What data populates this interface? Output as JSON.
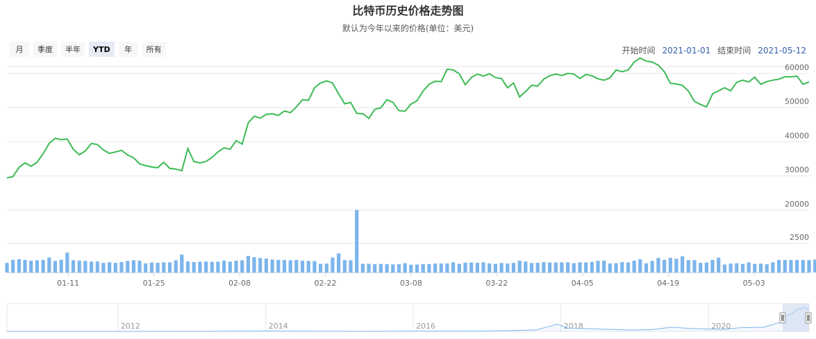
{
  "title": "比特币历史价格走势图",
  "subtitle": "默认为今年以来的价格(单位：美元)",
  "range_buttons": [
    "月",
    "季度",
    "半年",
    "YTD",
    "年",
    "所有"
  ],
  "active_range": "YTD",
  "date_range": {
    "start_label": "开始时间",
    "start_value": "2021-01-01",
    "end_label": "结束时间",
    "end_value": "2021-05-12"
  },
  "colors": {
    "price_line": "#3cba54",
    "volume_bar": "#7cb5ec",
    "navigator_line": "#7cb5ec",
    "navigator_mask": "#c8d7ec"
  },
  "chart_data": [
    {
      "type": "line",
      "name": "price",
      "x_range": [
        "2021-01-01",
        "2021-05-12"
      ],
      "x_tick_labels": [
        "01-11",
        "01-25",
        "02-08",
        "02-22",
        "03-08",
        "03-22",
        "04-05",
        "04-19",
        "05-03"
      ],
      "x_tick_dates": [
        "2021-01-11",
        "2021-01-25",
        "2021-02-08",
        "2021-02-22",
        "2021-03-08",
        "2021-03-22",
        "2021-04-05",
        "2021-04-19",
        "2021-05-03"
      ],
      "y_ticks": [
        20000,
        30000,
        40000,
        50000,
        60000
      ],
      "ylim": [
        20000,
        62000
      ],
      "values": [
        29400,
        29800,
        32500,
        33800,
        32800,
        34000,
        36500,
        39500,
        41000,
        40600,
        40800,
        37800,
        36200,
        37300,
        39500,
        39200,
        37600,
        36600,
        37000,
        37500,
        36100,
        35300,
        33500,
        33000,
        32600,
        32400,
        34000,
        32200,
        32000,
        31500,
        38000,
        34200,
        33800,
        34200,
        35400,
        37000,
        38200,
        37800,
        40300,
        39300,
        45500,
        47500,
        46900,
        48000,
        48200,
        47700,
        49000,
        48500,
        50200,
        52300,
        52100,
        55800,
        57200,
        57800,
        57200,
        54000,
        51100,
        51500,
        48300,
        48200,
        46800,
        49500,
        49900,
        52300,
        51500,
        49100,
        48900,
        51000,
        52000,
        54800,
        56800,
        57700,
        57600,
        61200,
        61000,
        59900,
        56700,
        58800,
        59800,
        59200,
        59900,
        58800,
        58500,
        55800,
        57200,
        53100,
        54700,
        56500,
        56300,
        58300,
        59300,
        59800,
        59400,
        60000,
        59800,
        58500,
        59700,
        59300,
        58400,
        58000,
        58700,
        61000,
        60500,
        61000,
        63300,
        64500,
        63600,
        63300,
        62400,
        60500,
        57100,
        56900,
        56500,
        54800,
        51800,
        50900,
        50200,
        54000,
        54900,
        55800,
        54900,
        57400,
        58000,
        57500,
        58900,
        56800,
        57600,
        58000,
        58300,
        59000,
        59000,
        59200,
        56800,
        57500
      ]
    },
    {
      "type": "bar",
      "name": "volume",
      "y_ticks": [
        2500
      ],
      "values": [
        820,
        1080,
        1130,
        1080,
        1010,
        1050,
        1080,
        1280,
        990,
        1090,
        1700,
        1050,
        1020,
        990,
        930,
        940,
        820,
        880,
        830,
        890,
        990,
        1050,
        1010,
        780,
        860,
        830,
        870,
        870,
        1050,
        1530,
        940,
        890,
        920,
        940,
        910,
        920,
        1020,
        930,
        1010,
        1050,
        1420,
        1310,
        1240,
        1190,
        1110,
        1080,
        1070,
        1050,
        1070,
        1010,
        990,
        970,
        740,
        760,
        1280,
        1630,
        1060,
        1040,
        5360,
        750,
        740,
        710,
        730,
        720,
        690,
        710,
        800,
        660,
        680,
        720,
        720,
        760,
        760,
        780,
        880,
        740,
        840,
        860,
        830,
        870,
        780,
        740,
        810,
        770,
        820,
        1010,
        940,
        810,
        830,
        880,
        860,
        860,
        870,
        870,
        800,
        870,
        860,
        900,
        1000,
        1020,
        760,
        800,
        890,
        860,
        1010,
        1130,
        780,
        990,
        1250,
        1090,
        1250,
        1170,
        1390,
        1060,
        1060,
        820,
        850,
        1080,
        1270,
        680,
        760,
        790,
        730,
        860,
        730,
        760,
        700,
        870,
        1080,
        1070,
        1080,
        1070,
        1080,
        1060,
        1110,
        1130,
        1000
      ]
    },
    {
      "type": "area",
      "name": "navigator",
      "x_tick_labels": [
        "2012",
        "2014",
        "2016",
        "2018",
        "2020"
      ],
      "x_range": [
        "2010-07-01",
        "2021-05-12"
      ],
      "x_tick_dates": [
        "2012-01-01",
        "2014-01-01",
        "2016-01-01",
        "2018-01-01",
        "2020-01-01"
      ],
      "dates": [
        "2010-07-01",
        "2012-01-01",
        "2013-04-01",
        "2013-12-01",
        "2014-06-01",
        "2015-06-01",
        "2016-06-01",
        "2017-01-01",
        "2017-06-01",
        "2017-09-01",
        "2017-12-15",
        "2018-02-01",
        "2018-06-01",
        "2018-12-15",
        "2019-04-01",
        "2019-07-01",
        "2019-10-01",
        "2020-03-15",
        "2020-06-01",
        "2020-10-01",
        "2020-12-15",
        "2021-01-10",
        "2021-02-10",
        "2021-03-15",
        "2021-04-14",
        "2021-05-12"
      ],
      "values": [
        0,
        5,
        200,
        1000,
        600,
        250,
        650,
        1000,
        2500,
        4000,
        19000,
        9000,
        7000,
        3500,
        5000,
        11000,
        8000,
        5000,
        9500,
        11000,
        23000,
        40000,
        46000,
        58000,
        64000,
        57500
      ],
      "selected_range": [
        "2021-01-01",
        "2021-05-12"
      ]
    }
  ]
}
